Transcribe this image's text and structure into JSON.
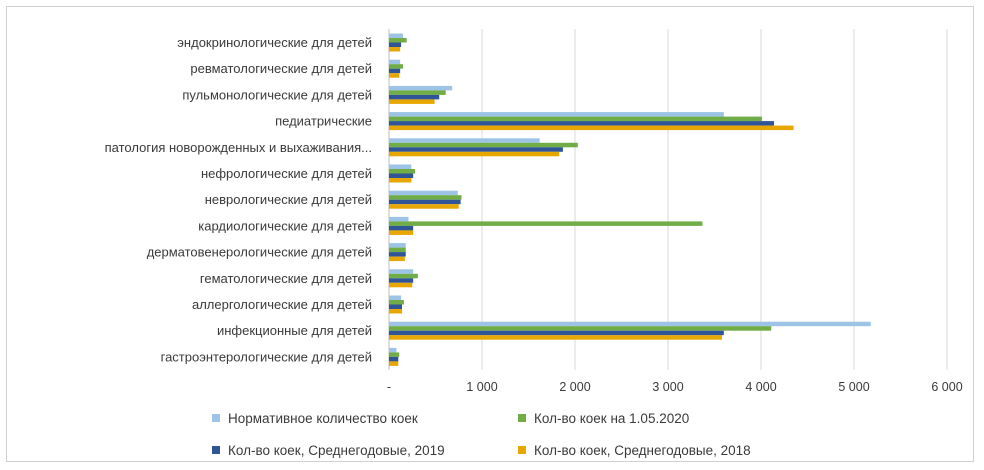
{
  "chart_data": {
    "type": "bar",
    "orientation": "horizontal",
    "categories": [
      "эндокринологические  для детей",
      "ревматологические для детей",
      "пульмонологические для детей",
      "педиатрические",
      "патология новорожденных и выхаживания...",
      "нефрологические для детей",
      "неврологические для детей",
      "кардиологические для детей",
      "дерматовенерологические для детей",
      "гематологические для детей",
      "аллергологические для детей",
      "инфекционные для детей",
      "гастроэнтерологические для детей"
    ],
    "series": [
      {
        "name": "Нормативное количество коек",
        "color": "#9dc3e6",
        "values": [
          150,
          120,
          680,
          3600,
          1620,
          240,
          740,
          210,
          180,
          260,
          130,
          5180,
          80
        ]
      },
      {
        "name": "Кол-во коек на 1.05.2020",
        "color": "#70ad47",
        "values": [
          190,
          150,
          610,
          4010,
          2030,
          280,
          780,
          3370,
          180,
          310,
          160,
          4110,
          110
        ]
      },
      {
        "name": "Кол-во коек, Среднегодовые, 2019",
        "color": "#2f5597",
        "values": [
          130,
          120,
          540,
          4140,
          1870,
          260,
          770,
          260,
          180,
          260,
          140,
          3600,
          100
        ]
      },
      {
        "name": "Кол-во коек, Среднегодовые, 2018",
        "color": "#e8a600",
        "values": [
          120,
          110,
          490,
          4350,
          1830,
          240,
          750,
          260,
          170,
          250,
          140,
          3580,
          100
        ]
      }
    ],
    "xlim": [
      0,
      6000
    ],
    "x_ticks": [
      0,
      1000,
      2000,
      3000,
      4000,
      5000,
      6000
    ],
    "x_tick_labels": [
      "-",
      "1 000",
      "2 000",
      "3 000",
      "4 000",
      "5 000",
      "6 000"
    ],
    "grid": true,
    "legend_position": "bottom",
    "title": "",
    "xlabel": "",
    "ylabel": ""
  }
}
